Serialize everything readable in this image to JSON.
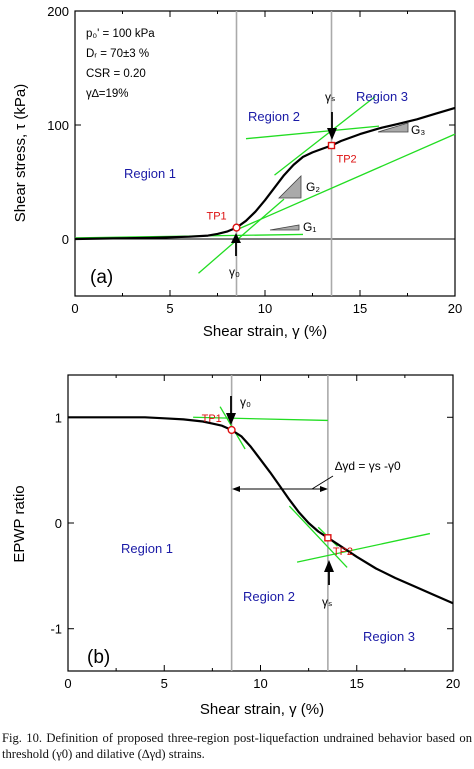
{
  "chart_data": [
    {
      "type": "line",
      "panel_label": "(a)",
      "xlabel": "Shear strain, γ (%)",
      "ylabel": "Shear stress, τ (kPa)",
      "xlim": [
        0,
        20
      ],
      "ylim": [
        -50,
        200
      ],
      "xticks": [
        0,
        5,
        10,
        15,
        20
      ],
      "yticks": [
        0,
        100,
        200
      ],
      "parameters": [
        "p₀' = 100 kPa",
        "Dᵣ = 70±3 %",
        "CSR = 0.20",
        "γ∆=19%"
      ],
      "series": [
        {
          "x": [
            0,
            2,
            4,
            6,
            7,
            7.5,
            8,
            8.5,
            9,
            9.5,
            10,
            10.5,
            11,
            11.5,
            12,
            12.5,
            13,
            13.5,
            14,
            15,
            16,
            17,
            18,
            19,
            20
          ],
          "y": [
            0,
            0.5,
            1,
            2,
            3,
            4.5,
            6.5,
            10,
            16,
            24,
            34,
            45,
            56,
            65,
            72,
            76,
            79,
            82,
            86,
            92,
            97,
            101,
            105,
            110,
            115
          ]
        }
      ],
      "tangent_lines": [
        {
          "x": [
            0,
            12
          ],
          "y": [
            1,
            4
          ]
        },
        {
          "x": [
            6.5,
            11
          ],
          "y": [
            -30,
            35
          ]
        },
        {
          "x": [
            8.5,
            20
          ],
          "y": [
            8,
            92
          ]
        },
        {
          "x": [
            9,
            16
          ],
          "y": [
            88,
            99
          ]
        },
        {
          "x": [
            10.5,
            15.8
          ],
          "y": [
            56,
            125
          ]
        }
      ],
      "reference_lines": {
        "horizontal_y": 0,
        "vertical_x": [
          8.5,
          13.5
        ]
      },
      "turning_points": [
        {
          "label": "TP1",
          "x": 8.5,
          "y": 10
        },
        {
          "label": "TP2",
          "x": 13.5,
          "y": 82
        }
      ],
      "regions": [
        "Region 1",
        "Region 2",
        "Region 3"
      ],
      "annotations": {
        "gamma0": "γ₀",
        "gammas": "γₛ",
        "G1": "G₁",
        "G2": "G₂",
        "G3": "G₃"
      }
    },
    {
      "type": "line",
      "panel_label": "(b)",
      "xlabel": "Shear strain, γ (%)",
      "ylabel": "EPWP ratio",
      "xlim": [
        0,
        20
      ],
      "ylim": [
        -1.4,
        1.4
      ],
      "xticks": [
        0,
        5,
        10,
        15,
        20
      ],
      "yticks": [
        -1,
        0,
        1
      ],
      "series": [
        {
          "x": [
            0,
            2,
            4,
            5,
            6,
            7,
            7.5,
            8,
            8.5,
            9,
            9.5,
            10,
            10.5,
            11,
            11.5,
            12,
            12.5,
            13,
            13.5,
            14,
            15,
            16,
            17,
            18,
            19,
            20
          ],
          "y": [
            1,
            1,
            1,
            0.99,
            0.98,
            0.96,
            0.94,
            0.92,
            0.88,
            0.82,
            0.72,
            0.6,
            0.48,
            0.35,
            0.22,
            0.1,
            0,
            -0.08,
            -0.14,
            -0.2,
            -0.32,
            -0.43,
            -0.52,
            -0.6,
            -0.68,
            -0.76
          ]
        }
      ],
      "tangent_lines": [
        {
          "x": [
            6.5,
            13.5
          ],
          "y": [
            1.0,
            0.97
          ]
        },
        {
          "x": [
            7.9,
            9.2
          ],
          "y": [
            1.1,
            0.7
          ]
        },
        {
          "x": [
            11.5,
            14.5
          ],
          "y": [
            0.16,
            -0.42
          ]
        },
        {
          "x": [
            11.9,
            18.8
          ],
          "y": [
            -0.37,
            -0.1
          ]
        },
        {
          "x": [
            13,
            14
          ],
          "y": [
            -0.04,
            -0.22
          ]
        }
      ],
      "reference_lines": {
        "vertical_x": [
          8.5,
          13.5
        ]
      },
      "turning_points": [
        {
          "label": "TP1",
          "x": 8.5,
          "y": 0.88
        },
        {
          "label": "TP2",
          "x": 13.5,
          "y": -0.14
        }
      ],
      "regions": [
        "Region 1",
        "Region 2",
        "Region 3"
      ],
      "annotations": {
        "gamma0": "γ₀",
        "gammas": "γₛ",
        "delta": "∆γd = γs -γ0"
      }
    }
  ],
  "caption": "Fig. 10. Definition of proposed three-region post-liquefaction undrained behavior based on threshold (γ0) and dilative (∆γd) strains."
}
